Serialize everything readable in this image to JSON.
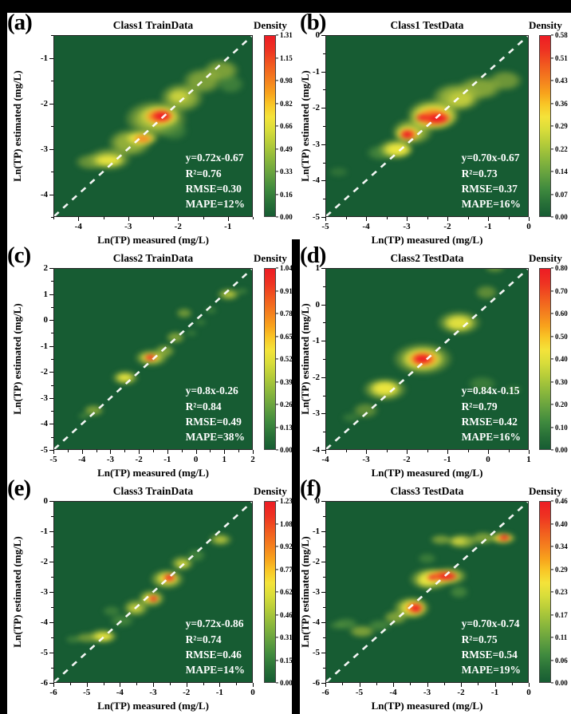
{
  "figure": {
    "colorbar_title": "Density",
    "xlabel": "Ln(TP) measured (mg/L)",
    "ylabel": "Ln(TP) estimated (mg/L)",
    "palette": {
      "plot_bg": "#175c33",
      "red": "#ee1c25",
      "orange": "#f57e20",
      "yellow": "#f0e93f",
      "olive": "#a6bc3c",
      "green": "#5d9a40",
      "identity_line": "#ffffff"
    }
  },
  "chart_data": [
    {
      "type": "heatmap",
      "panel_label": "(a)",
      "title": "Class1 TrainData",
      "xlabel": "Ln(TP) measured (mg/L)",
      "ylabel": "Ln(TP) estimated (mg/L)",
      "xlim": [
        -4.5,
        -0.5
      ],
      "ylim": [
        -4.5,
        -0.5
      ],
      "xticks": [
        -4,
        -3,
        -2,
        -1
      ],
      "yticks": [
        -1,
        -2,
        -3,
        -4
      ],
      "identity_line": true,
      "colorbar_ticks": [
        "1.31",
        "1.15",
        "0.98",
        "0.82",
        "0.66",
        "0.49",
        "0.33",
        "0.16",
        "0.00"
      ],
      "stats": {
        "equation": "y=0.72x-0.67",
        "r2": "R²=0.76",
        "rmse": "RMSE=0.30",
        "mape": "MAPE=12%"
      },
      "density_peaks": [
        [
          -3.7,
          -3.25,
          0.45,
          0.25,
          "olive",
          0.55
        ],
        [
          -3.35,
          -3.2,
          0.6,
          0.35,
          "olive",
          0.8
        ],
        [
          -2.95,
          -2.85,
          0.6,
          0.42,
          "olive",
          0.85
        ],
        [
          -2.45,
          -2.35,
          0.85,
          0.55,
          "olive",
          0.9
        ],
        [
          -1.95,
          -1.9,
          0.6,
          0.45,
          "olive",
          0.85
        ],
        [
          -1.55,
          -1.55,
          0.55,
          0.4,
          "olive",
          0.7
        ],
        [
          -1.18,
          -1.33,
          0.5,
          0.35,
          "olive",
          0.7
        ],
        [
          -1.0,
          -1.62,
          0.38,
          0.3,
          "green",
          0.55
        ],
        [
          -2.1,
          -2.6,
          0.4,
          0.3,
          "green",
          0.5
        ],
        [
          -3.35,
          -3.22,
          0.42,
          0.18,
          "yellow",
          0.9
        ],
        [
          -2.72,
          -2.76,
          0.45,
          0.22,
          "yellow",
          0.95
        ],
        [
          -2.37,
          -2.3,
          0.55,
          0.33,
          "yellow",
          1
        ],
        [
          -2.0,
          -1.88,
          0.3,
          0.2,
          "yellow",
          0.6
        ],
        [
          -2.37,
          -2.3,
          0.4,
          0.24,
          "orange",
          1
        ],
        [
          -2.7,
          -2.77,
          0.26,
          0.13,
          "orange",
          0.85
        ],
        [
          -2.33,
          -2.29,
          0.28,
          0.16,
          "red",
          1
        ]
      ]
    },
    {
      "type": "heatmap",
      "panel_label": "(b)",
      "title": "Class1 TestData",
      "xlabel": "Ln(TP) measured (mg/L)",
      "ylabel": "Ln(TP) estimated (mg/L)",
      "xlim": [
        -5,
        0
      ],
      "ylim": [
        -5,
        0
      ],
      "xticks": [
        -5,
        -4,
        -3,
        -2,
        -1,
        0
      ],
      "yticks": [
        0,
        -1,
        -2,
        -3,
        -4,
        -5
      ],
      "identity_line": true,
      "colorbar_ticks": [
        "0.58",
        "0.51",
        "0.43",
        "0.36",
        "0.29",
        "0.22",
        "0.14",
        "0.07",
        "0.00"
      ],
      "stats": {
        "equation": "y=0.70x-0.67",
        "r2": "R²=0.73",
        "rmse": "RMSE=0.37",
        "mape": "MAPE=16%"
      },
      "density_peaks": [
        [
          -3.6,
          -3.2,
          0.5,
          0.3,
          "green",
          0.6
        ],
        [
          -4.6,
          -3.7,
          0.35,
          0.2,
          "green",
          0.35
        ],
        [
          -3.25,
          -3.1,
          0.6,
          0.4,
          "olive",
          0.8
        ],
        [
          -2.85,
          -2.65,
          0.7,
          0.5,
          "olive",
          0.85
        ],
        [
          -2.35,
          -2.2,
          0.9,
          0.6,
          "olive",
          0.9
        ],
        [
          -1.8,
          -1.75,
          0.85,
          0.55,
          "olive",
          0.85
        ],
        [
          -1.25,
          -1.5,
          0.75,
          0.45,
          "olive",
          0.75
        ],
        [
          -0.65,
          -1.3,
          0.6,
          0.4,
          "olive",
          0.6
        ],
        [
          -3.2,
          -3.12,
          0.5,
          0.28,
          "yellow",
          0.95
        ],
        [
          -2.95,
          -2.7,
          0.45,
          0.3,
          "yellow",
          1
        ],
        [
          -2.35,
          -2.25,
          0.8,
          0.5,
          "yellow",
          1
        ],
        [
          -1.7,
          -1.8,
          0.5,
          0.35,
          "yellow",
          0.5
        ],
        [
          -2.35,
          -2.27,
          0.6,
          0.35,
          "orange",
          1
        ],
        [
          -2.95,
          -2.72,
          0.32,
          0.22,
          "orange",
          1
        ],
        [
          -2.25,
          -2.3,
          0.42,
          0.2,
          "red",
          1
        ],
        [
          -2.6,
          -2.28,
          0.25,
          0.14,
          "red",
          0.9
        ],
        [
          -2.97,
          -2.72,
          0.22,
          0.15,
          "red",
          1
        ]
      ]
    },
    {
      "type": "heatmap",
      "panel_label": "(c)",
      "title": "Class2 TrainData",
      "xlabel": "Ln(TP) measured (mg/L)",
      "ylabel": "Ln(TP) estimated (mg/L)",
      "xlim": [
        -5,
        2
      ],
      "ylim": [
        -5,
        2
      ],
      "xticks": [
        -5,
        -4,
        -3,
        -2,
        -1,
        0,
        1,
        2
      ],
      "yticks": [
        2,
        1,
        0,
        -1,
        -2,
        -3,
        -4,
        -5
      ],
      "identity_line": true,
      "colorbar_ticks": [
        "1.04",
        "0.91",
        "0.78",
        "0.65",
        "0.52",
        "0.39",
        "0.26",
        "0.13",
        "0.00"
      ],
      "stats": {
        "equation": "y=0.8x-0.26",
        "r2": "R²=0.84",
        "rmse": "RMSE=0.49",
        "mape": "MAPE=38%"
      },
      "density_peaks": [
        [
          1.5,
          1.0,
          0.3,
          0.18,
          "green",
          0.5
        ],
        [
          1.05,
          0.88,
          0.55,
          0.33,
          "olive",
          0.75
        ],
        [
          0.45,
          0.3,
          0.3,
          0.2,
          "green",
          0.45
        ],
        [
          -0.45,
          0.2,
          0.4,
          0.28,
          "olive",
          0.6
        ],
        [
          0.1,
          -0.15,
          0.3,
          0.2,
          "green",
          0.4
        ],
        [
          -0.75,
          -0.7,
          0.45,
          0.33,
          "olive",
          0.7
        ],
        [
          -1.1,
          -1.2,
          0.5,
          0.35,
          "olive",
          0.7
        ],
        [
          -1.55,
          -1.45,
          0.8,
          0.45,
          "olive",
          0.85
        ],
        [
          -2.45,
          -2.2,
          0.65,
          0.4,
          "olive",
          0.8
        ],
        [
          -3.5,
          -3.4,
          0.5,
          0.3,
          "olive",
          0.7
        ],
        [
          -3.85,
          -3.6,
          0.3,
          0.2,
          "green",
          0.5
        ],
        [
          -0.2,
          -0.55,
          0.3,
          0.2,
          "green",
          0.4
        ],
        [
          -1.58,
          -1.45,
          0.5,
          0.25,
          "yellow",
          1
        ],
        [
          -2.45,
          -2.2,
          0.42,
          0.22,
          "yellow",
          0.9
        ],
        [
          1.05,
          0.88,
          0.3,
          0.15,
          "yellow",
          0.5
        ],
        [
          -1.58,
          -1.45,
          0.36,
          0.18,
          "orange",
          1
        ],
        [
          -1.6,
          -1.45,
          0.26,
          0.13,
          "red",
          1
        ]
      ]
    },
    {
      "type": "heatmap",
      "panel_label": "(d)",
      "title": "Class2 TestData",
      "xlabel": "Ln(TP) measured (mg/L)",
      "ylabel": "Ln(TP) estimated (mg/L)",
      "xlim": [
        -4,
        1
      ],
      "ylim": [
        -4,
        1
      ],
      "xticks": [
        -4,
        -3,
        -2,
        -1,
        0,
        1
      ],
      "yticks": [
        1,
        0,
        -1,
        -2,
        -3,
        -4
      ],
      "identity_line": true,
      "colorbar_ticks": [
        "0.80",
        "0.70",
        "0.60",
        "0.50",
        "0.40",
        "0.30",
        "0.20",
        "0.10",
        "0.00"
      ],
      "stats": {
        "equation": "y=0.84x-0.15",
        "r2": "R²=0.79",
        "rmse": "RMSE=0.42",
        "mape": "MAPE=16%"
      },
      "density_peaks": [
        [
          0.1,
          0.9,
          0.35,
          0.2,
          "olive",
          0.5
        ],
        [
          -0.1,
          0.25,
          0.4,
          0.28,
          "olive",
          0.5
        ],
        [
          -0.75,
          -0.55,
          0.75,
          0.45,
          "olive",
          0.8
        ],
        [
          -1.6,
          -1.5,
          1.0,
          0.6,
          "olive",
          0.9
        ],
        [
          -2.5,
          -2.3,
          0.75,
          0.45,
          "olive",
          0.85
        ],
        [
          -2.95,
          -2.85,
          0.45,
          0.3,
          "olive",
          0.5
        ],
        [
          -0.2,
          -2.15,
          0.5,
          0.3,
          "green",
          0.5
        ],
        [
          0.55,
          -2.3,
          0.28,
          0.16,
          "green",
          0.4
        ],
        [
          -3.3,
          -3.05,
          0.32,
          0.2,
          "green",
          0.4
        ],
        [
          -1.6,
          -1.5,
          0.68,
          0.42,
          "yellow",
          1
        ],
        [
          -2.5,
          -2.28,
          0.5,
          0.3,
          "yellow",
          0.95
        ],
        [
          -0.75,
          -0.55,
          0.5,
          0.3,
          "yellow",
          0.85
        ],
        [
          -1.6,
          -1.5,
          0.5,
          0.3,
          "orange",
          1
        ],
        [
          -1.62,
          -1.5,
          0.33,
          0.19,
          "red",
          1
        ]
      ]
    },
    {
      "type": "heatmap",
      "panel_label": "(e)",
      "title": "Class3 TrainData",
      "xlabel": "Ln(TP) measured (mg/L)",
      "ylabel": "Ln(TP) estimated (mg/L)",
      "xlim": [
        -6,
        0
      ],
      "ylim": [
        -6,
        0
      ],
      "xticks": [
        -6,
        -5,
        -4,
        -3,
        -2,
        -1,
        0
      ],
      "yticks": [
        0,
        -1,
        -2,
        -3,
        -4,
        -5,
        -6
      ],
      "identity_line": true,
      "colorbar_ticks": [
        "1.23",
        "1.08",
        "0.92",
        "0.77",
        "0.62",
        "0.46",
        "0.31",
        "0.15",
        "0.00"
      ],
      "stats": {
        "equation": "y=0.72x-0.86",
        "r2": "R²=0.74",
        "rmse": "RMSE=0.46",
        "mape": "MAPE=14%"
      },
      "density_peaks": [
        [
          -5.3,
          -4.5,
          0.35,
          0.2,
          "green",
          0.5
        ],
        [
          -4.9,
          -4.45,
          0.5,
          0.25,
          "olive",
          0.6
        ],
        [
          -4.45,
          -4.4,
          0.6,
          0.35,
          "olive",
          0.8
        ],
        [
          -3.9,
          -3.9,
          0.5,
          0.3,
          "green",
          0.6
        ],
        [
          -4.2,
          -3.6,
          0.4,
          0.25,
          "green",
          0.5
        ],
        [
          -3.5,
          -3.5,
          0.55,
          0.4,
          "olive",
          0.75
        ],
        [
          -3.05,
          -3.2,
          0.55,
          0.4,
          "olive",
          0.85
        ],
        [
          -2.6,
          -2.6,
          0.7,
          0.45,
          "olive",
          0.9
        ],
        [
          -2.15,
          -2.1,
          0.5,
          0.35,
          "olive",
          0.7
        ],
        [
          -1.75,
          -1.85,
          0.4,
          0.3,
          "green",
          0.6
        ],
        [
          -1.05,
          -1.35,
          0.5,
          0.3,
          "olive",
          0.7
        ],
        [
          -4.45,
          -4.42,
          0.45,
          0.2,
          "yellow",
          0.9
        ],
        [
          -3.5,
          -3.52,
          0.32,
          0.18,
          "yellow",
          0.6
        ],
        [
          -3.05,
          -3.22,
          0.4,
          0.22,
          "yellow",
          0.95
        ],
        [
          -2.57,
          -2.57,
          0.45,
          0.28,
          "yellow",
          1
        ],
        [
          -2.15,
          -2.12,
          0.3,
          0.18,
          "yellow",
          0.7
        ],
        [
          -1.05,
          -1.35,
          0.26,
          0.15,
          "yellow",
          0.5
        ],
        [
          -2.55,
          -2.56,
          0.3,
          0.2,
          "orange",
          1
        ],
        [
          -3.0,
          -3.22,
          0.26,
          0.16,
          "orange",
          0.9
        ],
        [
          -2.52,
          -2.55,
          0.2,
          0.13,
          "red",
          1
        ],
        [
          -2.98,
          -3.22,
          0.15,
          0.11,
          "red",
          1
        ]
      ]
    },
    {
      "type": "heatmap",
      "panel_label": "(f)",
      "title": "Class3 TestData",
      "xlabel": "Ln(TP) measured (mg/L)",
      "ylabel": "Ln(TP) estimated (mg/L)",
      "xlim": [
        -6,
        0
      ],
      "ylim": [
        -6,
        0
      ],
      "xticks": [
        -6,
        -5,
        -4,
        -3,
        -2,
        -1,
        0
      ],
      "yticks": [
        0,
        -1,
        -2,
        -3,
        -4,
        -5,
        -6
      ],
      "identity_line": true,
      "colorbar_ticks": [
        "0.46",
        "0.40",
        "0.34",
        "0.29",
        "0.23",
        "0.17",
        "0.11",
        "0.06",
        "0.00"
      ],
      "stats": {
        "equation": "y=0.70x-0.74",
        "r2": "R²=0.75",
        "rmse": "RMSE=0.54",
        "mape": "MAPE=19%"
      },
      "density_peaks": [
        [
          -5.55,
          -4.05,
          0.35,
          0.2,
          "green",
          0.45
        ],
        [
          -5.3,
          -4.0,
          0.5,
          0.28,
          "green",
          0.6
        ],
        [
          -4.85,
          -4.25,
          0.55,
          0.3,
          "olive",
          0.7
        ],
        [
          -4.35,
          -4.05,
          0.5,
          0.28,
          "green",
          0.6
        ],
        [
          -3.9,
          -3.8,
          0.5,
          0.33,
          "olive",
          0.7
        ],
        [
          -3.45,
          -3.5,
          0.75,
          0.5,
          "olive",
          0.9
        ],
        [
          -2.9,
          -2.6,
          0.85,
          0.5,
          "olive",
          0.9
        ],
        [
          -2.35,
          -2.5,
          0.7,
          0.4,
          "olive",
          0.9
        ],
        [
          -2.1,
          -3.0,
          0.4,
          0.3,
          "green",
          0.6
        ],
        [
          -3.0,
          -1.95,
          0.4,
          0.25,
          "green",
          0.5
        ],
        [
          -2.0,
          -1.4,
          0.65,
          0.35,
          "olive",
          0.8
        ],
        [
          -2.6,
          -1.35,
          0.45,
          0.25,
          "olive",
          0.65
        ],
        [
          -1.4,
          -1.3,
          0.5,
          0.3,
          "olive",
          0.7
        ],
        [
          -0.85,
          -1.3,
          0.55,
          0.3,
          "olive",
          0.8
        ],
        [
          -3.4,
          -3.5,
          0.55,
          0.4,
          "yellow",
          0.95
        ],
        [
          -3.0,
          -2.65,
          0.45,
          0.28,
          "yellow",
          0.85
        ],
        [
          -2.65,
          -2.52,
          0.85,
          0.35,
          "yellow",
          1
        ],
        [
          -0.85,
          -1.3,
          0.42,
          0.22,
          "yellow",
          0.9
        ],
        [
          -2.1,
          -1.4,
          0.35,
          0.2,
          "yellow",
          0.6
        ],
        [
          -2.55,
          -2.5,
          0.6,
          0.25,
          "orange",
          1
        ],
        [
          -3.35,
          -3.5,
          0.38,
          0.27,
          "orange",
          1
        ],
        [
          -0.83,
          -1.29,
          0.3,
          0.16,
          "orange",
          0.9
        ],
        [
          -2.45,
          -2.5,
          0.45,
          0.16,
          "red",
          1
        ],
        [
          -2.85,
          -2.55,
          0.22,
          0.13,
          "red",
          0.9
        ],
        [
          -3.32,
          -3.52,
          0.24,
          0.18,
          "red",
          1
        ],
        [
          -0.8,
          -1.28,
          0.2,
          0.11,
          "red",
          1
        ]
      ]
    }
  ]
}
